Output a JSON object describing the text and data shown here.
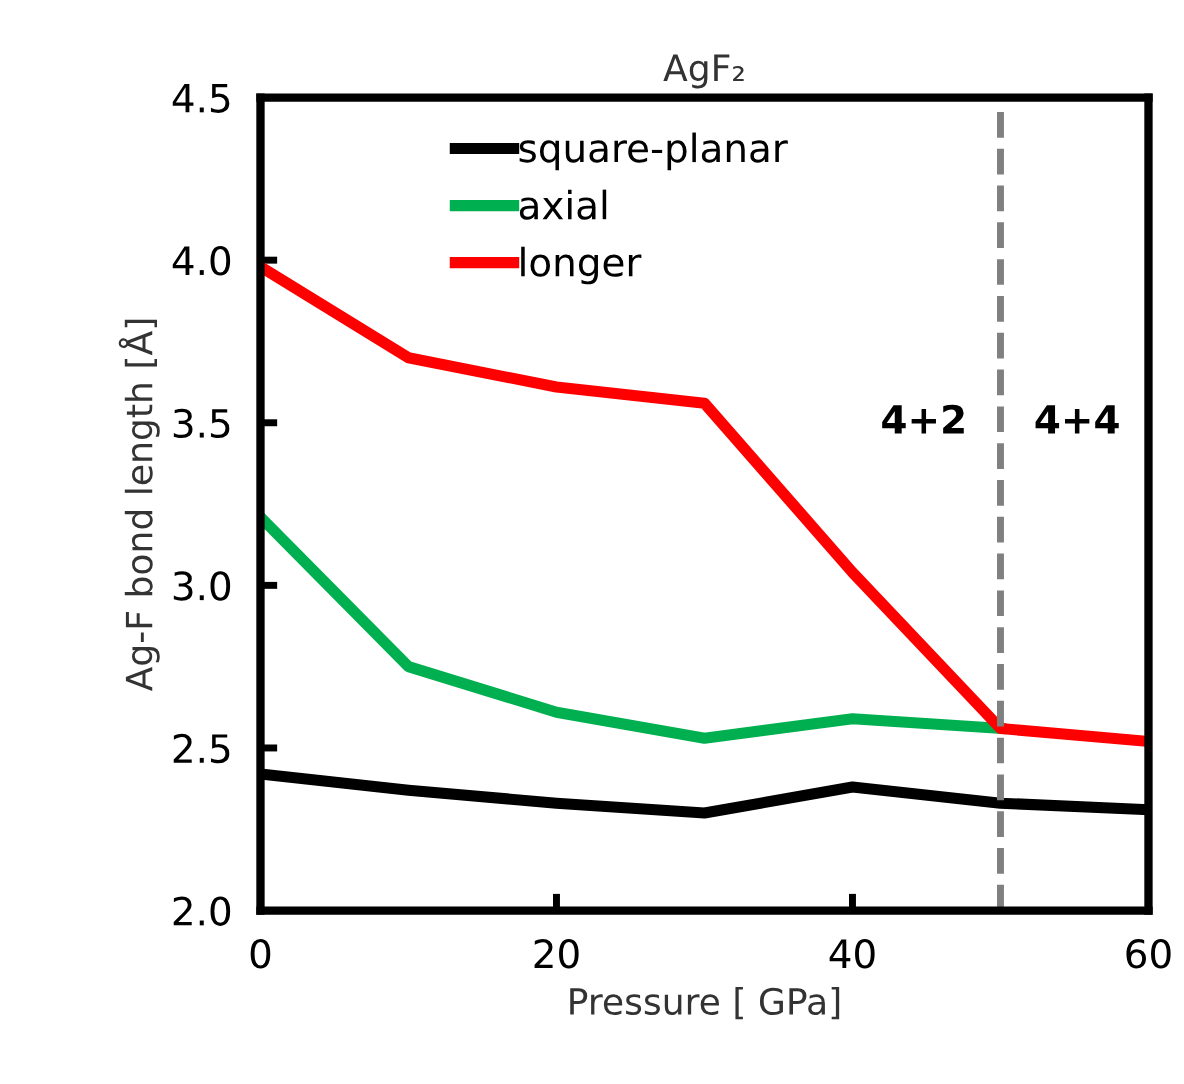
{
  "chart_data": {
    "type": "line",
    "title": "AgF₂",
    "xlabel": "Pressure [ GPa]",
    "ylabel": "Ag-F bond length [Å]",
    "x": [
      0,
      10,
      20,
      30,
      40,
      50,
      60
    ],
    "series": [
      {
        "name": "square-planar",
        "color": "#000000",
        "values": [
          2.42,
          2.37,
          2.33,
          2.3,
          2.38,
          2.33,
          2.31
        ]
      },
      {
        "name": "axial",
        "color": "#00b050",
        "values": [
          3.21,
          2.75,
          2.61,
          2.53,
          2.59,
          2.56,
          null
        ]
      },
      {
        "name": "longer",
        "color": "#ff0000",
        "values": [
          3.98,
          3.7,
          3.61,
          3.56,
          3.04,
          2.56,
          2.52
        ]
      }
    ],
    "xlim": [
      0,
      60
    ],
    "xticks": [
      0,
      20,
      40,
      60
    ],
    "ylim": [
      2.0,
      4.5
    ],
    "yticks": [
      {
        "value": 2.0,
        "label": "2.0"
      },
      {
        "value": 2.5,
        "label": "2.5"
      },
      {
        "value": 3.0,
        "label": "3.0"
      },
      {
        "value": 3.5,
        "label": "3.5"
      },
      {
        "value": 4.0,
        "label": "4.0"
      },
      {
        "value": 4.5,
        "label": "4.5"
      }
    ],
    "ref_lines": [
      {
        "axis": "x",
        "value": 50,
        "color": "#808080",
        "line_style": "dashed"
      }
    ],
    "annotations": [
      "4+2",
      "4+4"
    ],
    "legend": "top left",
    "grid": false,
    "marker": "none",
    "line_style": "solid"
  }
}
